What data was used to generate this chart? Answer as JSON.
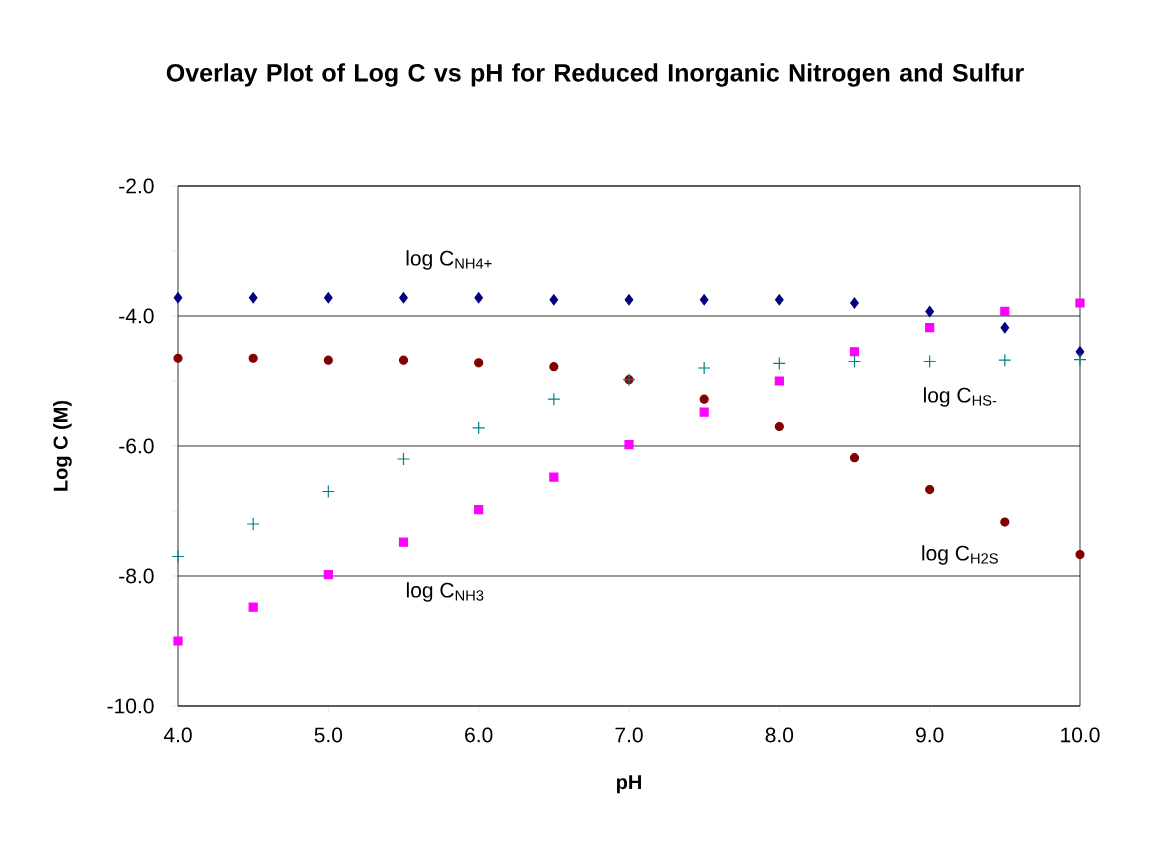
{
  "chart_data": {
    "type": "scatter",
    "title": "Overlay Plot of Log C vs pH for Reduced Inorganic Nitrogen and Sulfur",
    "xlabel": "pH",
    "ylabel": "Log C (M)",
    "x": [
      4.0,
      4.5,
      5.0,
      5.5,
      6.0,
      6.5,
      7.0,
      7.5,
      8.0,
      8.5,
      9.0,
      9.5,
      10.0
    ],
    "series": [
      {
        "color": "#000080",
        "marker": "diamond",
        "values": [
          -3.72,
          -3.72,
          -3.72,
          -3.72,
          -3.72,
          -3.75,
          -3.75,
          -3.75,
          -3.75,
          -3.8,
          -3.93,
          -4.18,
          -4.55
        ]
      },
      {
        "color": "#ff00ff",
        "marker": "square",
        "values": [
          -9.0,
          -8.48,
          -7.98,
          -7.48,
          -6.98,
          -6.48,
          -5.98,
          -5.48,
          -5.0,
          -4.55,
          -4.18,
          -3.93,
          -3.8
        ]
      },
      {
        "color": "#800000",
        "marker": "circle",
        "values": [
          -4.65,
          -4.65,
          -4.68,
          -4.68,
          -4.72,
          -4.78,
          -4.98,
          -5.28,
          -5.7,
          -6.18,
          -6.67,
          -7.17,
          -7.67
        ]
      },
      {
        "color": "#008080",
        "marker": "cross",
        "values": [
          -7.7,
          -7.2,
          -6.7,
          -6.2,
          -5.72,
          -5.28,
          -4.98,
          -4.8,
          -4.73,
          -4.7,
          -4.7,
          -4.68,
          -4.67
        ]
      }
    ],
    "xlim": [
      4.0,
      10.0
    ],
    "ylim": [
      -10.0,
      -2.0
    ],
    "xticks": [
      {
        "value": 4,
        "label": "4.0"
      },
      {
        "value": 5,
        "label": "5.0"
      },
      {
        "value": 6,
        "label": "6.0"
      },
      {
        "value": 7,
        "label": "7.0"
      },
      {
        "value": 8,
        "label": "8.0"
      },
      {
        "value": 9,
        "label": "9.0"
      },
      {
        "value": 10,
        "label": "10.0"
      }
    ],
    "yticks": [
      {
        "value": -10,
        "label": "-10.0"
      },
      {
        "value": -9,
        "label": null
      },
      {
        "value": -8,
        "label": "-8.0"
      },
      {
        "value": -7,
        "label": null
      },
      {
        "value": -6,
        "label": "-6.0"
      },
      {
        "value": -5,
        "label": null
      },
      {
        "value": -4,
        "label": "-4.0"
      },
      {
        "value": -3,
        "label": null
      },
      {
        "value": -2,
        "label": "-2.0"
      }
    ],
    "grid": "y",
    "annotations": [
      "log C$_{NH4+}$",
      "log C$_{HS-}$",
      "log C$_{H2S}$",
      "log C$_{NH3}$"
    ]
  }
}
